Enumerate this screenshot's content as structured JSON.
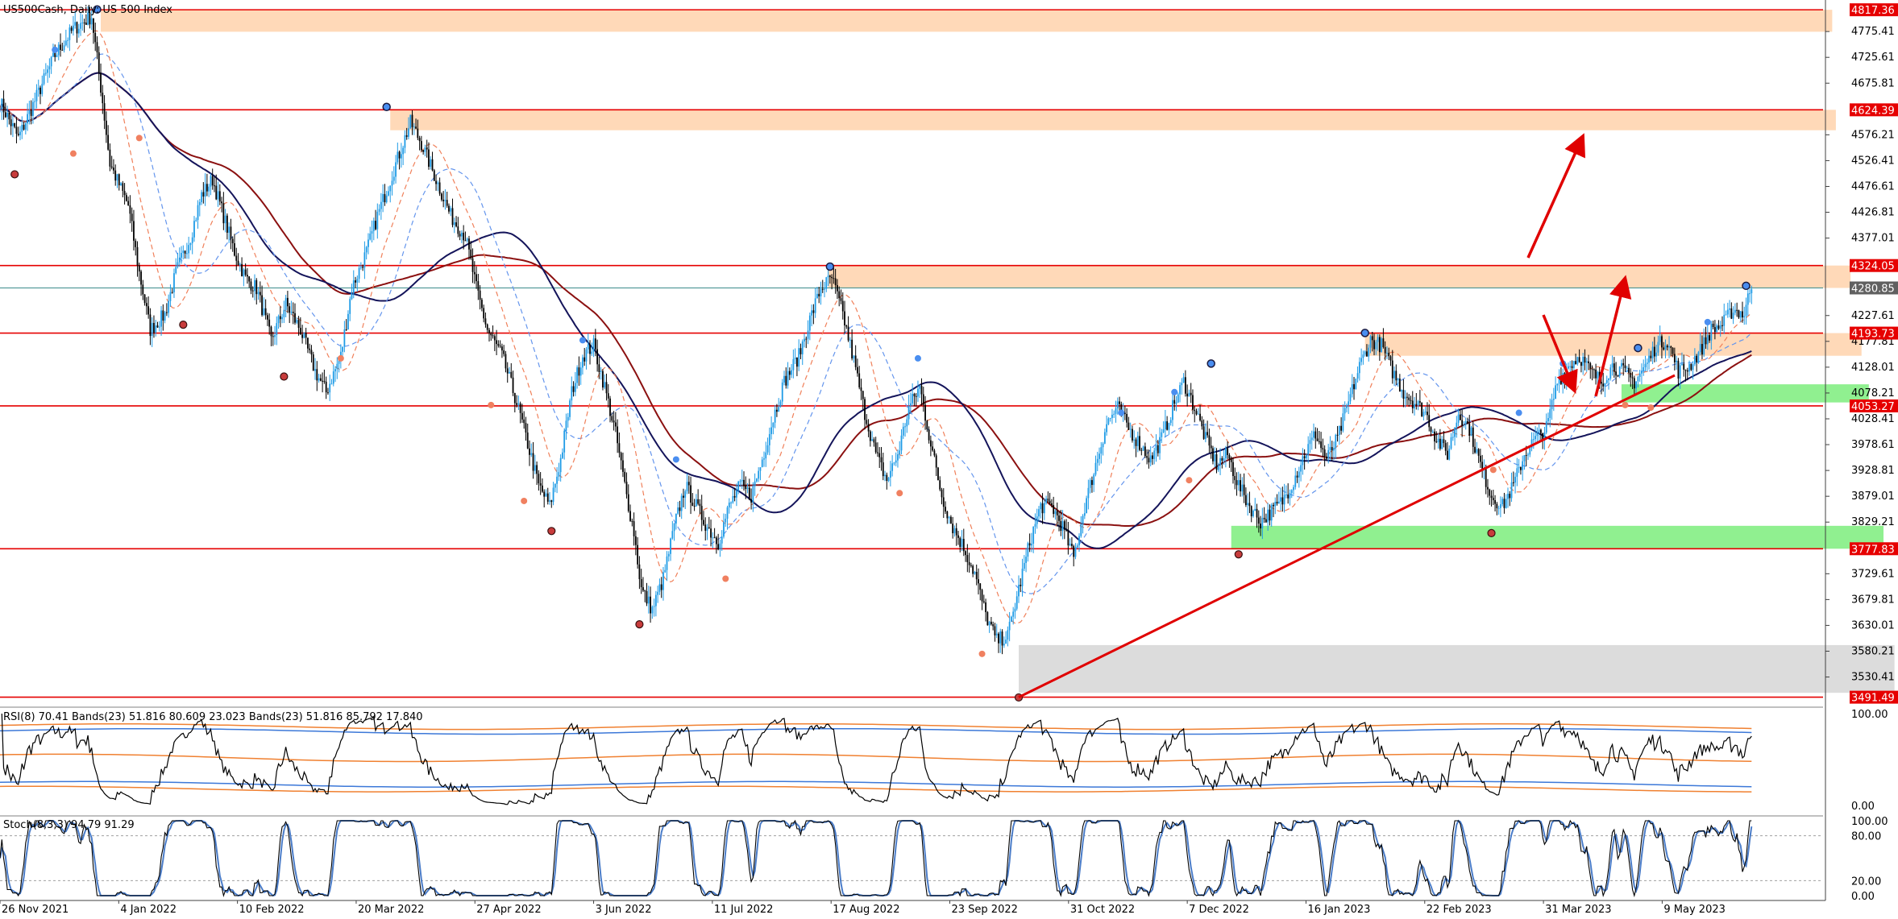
{
  "header": {
    "symbol_title": "US500Cash, Daily:  US 500 Index",
    "rsi_label": "RSI(8) 70.41 Bands(23) 51.816 80.609 23.023 Bands(23) 51.816 85.792 17.840",
    "stoch_label": "Stoch(8,3,3) 94.79 91.29"
  },
  "chart_data": [
    {
      "type": "candlestick",
      "name": "US500Cash Daily",
      "x_labels": [
        "26 Nov 2021",
        "4 Jan 2022",
        "10 Feb 2022",
        "20 Mar 2022",
        "27 Apr 2022",
        "3 Jun 2022",
        "11 Jul 2022",
        "17 Aug 2022",
        "23 Sep 2022",
        "31 Oct 2022",
        "7 Dec 2022",
        "16 Jan 2023",
        "22 Feb 2023",
        "31 Mar 2023",
        "9 May 2023"
      ],
      "y_ticks": [
        4775.41,
        4725.61,
        4675.81,
        4576.21,
        4526.41,
        4476.61,
        4426.81,
        4377.01,
        4227.61,
        4177.81,
        4128.01,
        4078.21,
        4028.41,
        3978.61,
        3928.81,
        3879.01,
        3829.21,
        3729.61,
        3679.81,
        3630.01,
        3580.21,
        3530.41
      ],
      "ylim": [
        3480,
        4830
      ],
      "current_price": 4280.85,
      "key_levels": [
        4817.36,
        4624.39,
        4324.05,
        4193.73,
        4053.27,
        3777.83,
        3491.49
      ],
      "close_path": [
        [
          0,
          4640
        ],
        [
          10,
          4570
        ],
        [
          20,
          4650
        ],
        [
          30,
          4730
        ],
        [
          40,
          4780
        ],
        [
          50,
          4805
        ],
        [
          56,
          4640
        ],
        [
          60,
          4520
        ],
        [
          70,
          4440
        ],
        [
          76,
          4310
        ],
        [
          82,
          4200
        ],
        [
          90,
          4230
        ],
        [
          96,
          4310
        ],
        [
          104,
          4380
        ],
        [
          110,
          4460
        ],
        [
          116,
          4490
        ],
        [
          122,
          4420
        ],
        [
          128,
          4350
        ],
        [
          134,
          4300
        ],
        [
          140,
          4280
        ],
        [
          148,
          4180
        ],
        [
          156,
          4250
        ],
        [
          164,
          4200
        ],
        [
          172,
          4120
        ],
        [
          178,
          4080
        ],
        [
          186,
          4150
        ],
        [
          192,
          4280
        ],
        [
          200,
          4350
        ],
        [
          206,
          4420
        ],
        [
          212,
          4480
        ],
        [
          218,
          4540
        ],
        [
          224,
          4600
        ],
        [
          230,
          4560
        ],
        [
          238,
          4490
        ],
        [
          246,
          4420
        ],
        [
          254,
          4380
        ],
        [
          260,
          4280
        ],
        [
          266,
          4200
        ],
        [
          274,
          4150
        ],
        [
          282,
          4060
        ],
        [
          288,
          3980
        ],
        [
          294,
          3900
        ],
        [
          300,
          3860
        ],
        [
          306,
          3950
        ],
        [
          312,
          4080
        ],
        [
          318,
          4150
        ],
        [
          324,
          4170
        ],
        [
          330,
          4090
        ],
        [
          336,
          4000
        ],
        [
          342,
          3880
        ],
        [
          346,
          3810
        ],
        [
          350,
          3700
        ],
        [
          356,
          3660
        ],
        [
          362,
          3720
        ],
        [
          368,
          3820
        ],
        [
          374,
          3900
        ],
        [
          380,
          3860
        ],
        [
          386,
          3820
        ],
        [
          392,
          3790
        ],
        [
          398,
          3860
        ],
        [
          404,
          3900
        ],
        [
          410,
          3880
        ],
        [
          416,
          3950
        ],
        [
          422,
          4030
        ],
        [
          428,
          4100
        ],
        [
          436,
          4150
        ],
        [
          442,
          4220
        ],
        [
          448,
          4280
        ],
        [
          454,
          4300
        ],
        [
          460,
          4230
        ],
        [
          466,
          4140
        ],
        [
          472,
          4040
        ],
        [
          478,
          3960
        ],
        [
          484,
          3910
        ],
        [
          490,
          3960
        ],
        [
          496,
          4050
        ],
        [
          502,
          4090
        ],
        [
          508,
          3980
        ],
        [
          514,
          3880
        ],
        [
          520,
          3820
        ],
        [
          526,
          3780
        ],
        [
          532,
          3730
        ],
        [
          538,
          3650
        ],
        [
          544,
          3600
        ],
        [
          550,
          3610
        ],
        [
          556,
          3700
        ],
        [
          562,
          3790
        ],
        [
          568,
          3860
        ],
        [
          574,
          3860
        ],
        [
          580,
          3820
        ],
        [
          586,
          3760
        ],
        [
          592,
          3860
        ],
        [
          598,
          3940
        ],
        [
          604,
          4020
        ],
        [
          610,
          4050
        ],
        [
          616,
          4010
        ],
        [
          622,
          3980
        ],
        [
          628,
          3950
        ],
        [
          634,
          3990
        ],
        [
          640,
          4050
        ],
        [
          646,
          4100
        ],
        [
          652,
          4050
        ],
        [
          658,
          3990
        ],
        [
          664,
          3940
        ],
        [
          670,
          3960
        ],
        [
          676,
          3900
        ],
        [
          682,
          3860
        ],
        [
          688,
          3830
        ],
        [
          694,
          3850
        ],
        [
          700,
          3870
        ],
        [
          706,
          3910
        ],
        [
          712,
          3960
        ],
        [
          718,
          4000
        ],
        [
          724,
          3950
        ],
        [
          730,
          3990
        ],
        [
          736,
          4060
        ],
        [
          742,
          4130
        ],
        [
          748,
          4180
        ],
        [
          754,
          4170
        ],
        [
          760,
          4120
        ],
        [
          766,
          4080
        ],
        [
          772,
          4060
        ],
        [
          778,
          4040
        ],
        [
          784,
          3990
        ],
        [
          790,
          3960
        ],
        [
          796,
          4040
        ],
        [
          802,
          4010
        ],
        [
          808,
          3940
        ],
        [
          814,
          3880
        ],
        [
          820,
          3860
        ],
        [
          826,
          3900
        ],
        [
          832,
          3960
        ],
        [
          838,
          3990
        ],
        [
          844,
          4010
        ],
        [
          850,
          4100
        ],
        [
          856,
          4130
        ],
        [
          862,
          4150
        ],
        [
          868,
          4120
        ],
        [
          874,
          4100
        ],
        [
          880,
          4130
        ],
        [
          886,
          4120
        ],
        [
          892,
          4100
        ],
        [
          898,
          4130
        ],
        [
          904,
          4170
        ],
        [
          910,
          4180
        ],
        [
          916,
          4120
        ],
        [
          922,
          4130
        ],
        [
          928,
          4160
        ],
        [
          934,
          4200
        ],
        [
          940,
          4210
        ],
        [
          946,
          4240
        ],
        [
          952,
          4230
        ],
        [
          956,
          4290
        ]
      ],
      "swing_markers": [
        {
          "t": 8,
          "v": 4500,
          "kind": "low-major"
        },
        {
          "t": 30,
          "v": 4740,
          "kind": "high-minor"
        },
        {
          "t": 40,
          "v": 4540,
          "kind": "low-minor"
        },
        {
          "t": 53,
          "v": 4818,
          "kind": "high-major"
        },
        {
          "t": 76,
          "v": 4570,
          "kind": "low-minor"
        },
        {
          "t": 100,
          "v": 4210,
          "kind": "low-major"
        },
        {
          "t": 155,
          "v": 4110,
          "kind": "low-major"
        },
        {
          "t": 186,
          "v": 4145,
          "kind": "low-minor"
        },
        {
          "t": 211,
          "v": 4630,
          "kind": "high-major"
        },
        {
          "t": 268,
          "v": 4055,
          "kind": "low-minor"
        },
        {
          "t": 286,
          "v": 3870,
          "kind": "low-minor"
        },
        {
          "t": 301,
          "v": 3812,
          "kind": "low-major"
        },
        {
          "t": 318,
          "v": 4180,
          "kind": "high-minor"
        },
        {
          "t": 349,
          "v": 3632,
          "kind": "low-major"
        },
        {
          "t": 369,
          "v": 3950,
          "kind": "high-minor"
        },
        {
          "t": 396,
          "v": 3720,
          "kind": "low-minor"
        },
        {
          "t": 453,
          "v": 4322,
          "kind": "high-major"
        },
        {
          "t": 491,
          "v": 3885,
          "kind": "low-minor"
        },
        {
          "t": 501,
          "v": 4145,
          "kind": "high-minor"
        },
        {
          "t": 536,
          "v": 3575,
          "kind": "low-minor"
        },
        {
          "t": 556,
          "v": 3491,
          "kind": "low-major"
        },
        {
          "t": 612,
          "v": 4040,
          "kind": "high-minor"
        },
        {
          "t": 649,
          "v": 3910,
          "kind": "low-minor"
        },
        {
          "t": 641,
          "v": 4080,
          "kind": "high-minor"
        },
        {
          "t": 661,
          "v": 4135,
          "kind": "high-major"
        },
        {
          "t": 676,
          "v": 3767,
          "kind": "low-major"
        },
        {
          "t": 745,
          "v": 4194,
          "kind": "high-major"
        },
        {
          "t": 815,
          "v": 3930,
          "kind": "low-minor"
        },
        {
          "t": 814,
          "v": 3808,
          "kind": "low-major"
        },
        {
          "t": 829,
          "v": 4040,
          "kind": "high-minor"
        },
        {
          "t": 853,
          "v": 4135,
          "kind": "high-minor"
        },
        {
          "t": 887,
          "v": 4055,
          "kind": "low-minor"
        },
        {
          "t": 894,
          "v": 4165,
          "kind": "high-major"
        },
        {
          "t": 901,
          "v": 4050,
          "kind": "low-minor"
        },
        {
          "t": 932,
          "v": 4215,
          "kind": "high-minor"
        },
        {
          "t": 953,
          "v": 4285,
          "kind": "high-major"
        }
      ]
    },
    {
      "type": "line",
      "name": "RSI(8)",
      "y_ticks": [
        100.0,
        0.0
      ],
      "ylim": [
        0,
        100
      ],
      "value": 70.41,
      "bands": [
        51.816,
        80.609,
        23.023,
        85.792,
        17.84
      ]
    },
    {
      "type": "line",
      "name": "Stoch(8,3,3)",
      "y_ticks": [
        100.0,
        80.0,
        20.0,
        0.0
      ],
      "ylim": [
        0,
        100
      ],
      "main": 94.79,
      "signal": 91.29
    }
  ],
  "colors": {
    "bull_candle": "#1e9be6",
    "bear_candle": "#000000",
    "level_line": "#e60000",
    "resistance_zone": "#ffd9b8",
    "support_zone": "#90f090",
    "demand_zone": "#dcdcdc",
    "ma_long_navy": "#14145a",
    "ma_long_maroon": "#8b1010",
    "ma_short_blue": "#6495ed",
    "ma_short_orange": "#f0805a",
    "rsi_line": "#000000",
    "band_orange": "#f08030",
    "band_blue": "#3c78d8",
    "stoch_main": "#000000",
    "stoch_signal": "#4a7cc8",
    "marker_high": "#4a8ef0",
    "marker_low": "#f08060",
    "marker_major": "#c83c3c",
    "current_price_label": "#606060"
  }
}
